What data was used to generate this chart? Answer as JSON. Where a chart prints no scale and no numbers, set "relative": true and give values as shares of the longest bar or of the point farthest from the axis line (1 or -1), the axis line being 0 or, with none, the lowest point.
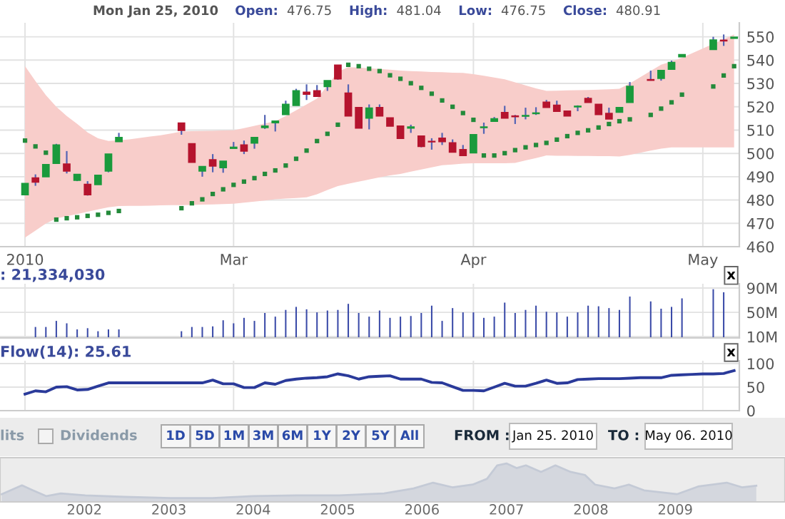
{
  "chart_data": [
    {
      "type": "candlestick",
      "annotations": [
        "Mon Jan 25, 2010",
        "Open:",
        "476.75",
        "High:",
        "481.04",
        "Low:",
        "476.75",
        "Close:",
        "480.91"
      ],
      "categories": [
        "2010",
        null,
        null,
        null,
        null,
        null,
        null,
        null,
        null,
        null,
        null,
        null,
        null,
        null,
        null,
        null,
        null,
        null,
        null,
        null,
        "Mar",
        null,
        null,
        null,
        null,
        null,
        null,
        null,
        null,
        null,
        null,
        null,
        null,
        null,
        null,
        null,
        null,
        null,
        null,
        null,
        null,
        null,
        null,
        "Apr",
        null,
        null,
        null,
        null,
        null,
        null,
        null,
        null,
        null,
        null,
        null,
        null,
        null,
        null,
        null,
        null,
        null,
        null,
        null,
        null,
        null,
        "May",
        null,
        null,
        null
      ],
      "ohlc": [
        [
          482.3,
          487.1,
          482.3,
          487.1
        ],
        [
          489.4,
          491.0,
          486.1,
          487.7
        ],
        [
          490.0,
          495.2,
          490.0,
          495.2
        ],
        [
          495.8,
          504.1,
          495.8,
          503.6
        ],
        [
          495.4,
          501.0,
          491.4,
          492.5
        ],
        [
          488.5,
          491.0,
          488.1,
          491.0
        ],
        [
          486.7,
          488.1,
          481.9,
          482.3
        ],
        [
          486.7,
          490.6,
          486.7,
          490.6
        ],
        [
          492.5,
          499.7,
          491.9,
          499.7
        ],
        [
          505.1,
          508.8,
          505.1,
          506.8
        ],
        null,
        null,
        null,
        null,
        null,
        [
          513.0,
          513.0,
          508.0,
          509.9
        ],
        [
          504.1,
          504.1,
          496.2,
          496.2
        ],
        [
          492.5,
          494.3,
          490.0,
          494.3
        ],
        [
          497.2,
          499.7,
          491.9,
          494.6
        ],
        [
          493.9,
          496.6,
          491.7,
          496.6
        ],
        [
          502.2,
          504.9,
          502.2,
          502.6
        ],
        [
          503.6,
          505.5,
          499.7,
          501.0
        ],
        [
          504.5,
          506.8,
          502.0,
          506.8
        ],
        [
          511.1,
          516.5,
          510.5,
          511.7
        ],
        [
          513.2,
          513.8,
          509.4,
          513.8
        ],
        [
          516.7,
          522.6,
          516.7,
          521.0
        ],
        [
          520.6,
          527.7,
          520.6,
          526.8
        ],
        [
          526.2,
          529.6,
          522.9,
          525.4
        ],
        [
          526.8,
          529.3,
          524.5,
          524.5
        ],
        [
          528.7,
          531.2,
          526.8,
          531.2
        ],
        [
          537.8,
          537.8,
          531.6,
          532.0
        ],
        [
          525.8,
          529.6,
          516.1,
          516.1
        ],
        [
          519.6,
          519.6,
          510.9,
          510.9
        ],
        [
          515.2,
          521.0,
          510.3,
          519.4
        ],
        [
          519.6,
          521.0,
          516.1,
          516.1
        ],
        [
          515.2,
          515.2,
          511.7,
          511.7
        ],
        [
          511.7,
          511.7,
          506.5,
          506.5
        ],
        [
          510.9,
          512.3,
          508.8,
          511.3
        ],
        [
          507.4,
          507.4,
          502.6,
          503.0
        ],
        [
          505.1,
          506.5,
          501.6,
          505.0
        ],
        [
          506.5,
          508.8,
          503.6,
          505.1
        ],
        [
          504.5,
          506.0,
          500.6,
          500.6
        ],
        [
          501.6,
          503.6,
          499.1,
          499.1
        ],
        [
          500.3,
          508.0,
          500.3,
          508.0
        ],
        [
          511.1,
          513.2,
          508.4,
          511.3
        ],
        [
          513.8,
          515.6,
          513.8,
          514.8
        ],
        [
          517.5,
          520.4,
          515.2,
          515.2
        ],
        [
          516.0,
          516.5,
          512.6,
          515.8
        ],
        [
          516.0,
          519.6,
          514.6,
          516.2
        ],
        [
          517.1,
          519.8,
          516.5,
          517.3
        ],
        [
          521.9,
          522.9,
          519.8,
          519.8
        ],
        [
          520.6,
          522.6,
          518.1,
          518.1
        ],
        [
          518.1,
          518.1,
          516.1,
          516.1
        ],
        [
          520.0,
          520.6,
          518.1,
          520.2
        ],
        [
          523.5,
          524.2,
          521.9,
          521.9
        ],
        [
          521.0,
          521.0,
          516.7,
          516.7
        ],
        [
          517.1,
          519.6,
          514.8,
          514.8
        ],
        [
          517.7,
          519.6,
          517.7,
          519.6
        ],
        [
          521.9,
          530.6,
          521.9,
          528.7
        ],
        null,
        [
          531.6,
          535.5,
          531.2,
          531.4
        ],
        [
          532.2,
          535.5,
          531.2,
          535.5
        ],
        [
          536.1,
          539.8,
          536.1,
          539.0
        ],
        [
          541.5,
          542.3,
          541.5,
          542.3
        ],
        null,
        null,
        [
          544.6,
          550.0,
          544.6,
          548.6
        ],
        [
          548.5,
          551.0,
          546.1,
          548.3
        ],
        [
          549.4,
          549.8,
          549.4,
          549.8
        ]
      ],
      "colors": [
        "#1a9a3c",
        "#b5142e",
        "#1a9a3c",
        "#1a9a3c",
        "#b5142e",
        "#1a9a3c",
        "#b5142e",
        "#1a9a3c",
        "#1a9a3c",
        "#1a9a3c",
        null,
        null,
        null,
        null,
        null,
        "#b5142e",
        "#b5142e",
        "#1a9a3c",
        "#b5142e",
        "#1a9a3c",
        "#1a9a3c",
        "#b5142e",
        "#1a9a3c",
        "#1a9a3c",
        "#1a9a3c",
        "#1a9a3c",
        "#1a9a3c",
        "#b5142e",
        "#b5142e",
        "#1a9a3c",
        "#b5142e",
        "#b5142e",
        "#b5142e",
        "#1a9a3c",
        "#b5142e",
        "#b5142e",
        "#b5142e",
        "#1a9a3c",
        "#b5142e",
        "#b5142e",
        "#b5142e",
        "#b5142e",
        "#b5142e",
        "#1a9a3c",
        "#1a9a3c",
        "#1a9a3c",
        "#b5142e",
        "#b5142e",
        "#1a9a3c",
        "#1a9a3c",
        "#b5142e",
        "#b5142e",
        "#b5142e",
        "#1a9a3c",
        "#b5142e",
        "#b5142e",
        "#b5142e",
        "#1a9a3c",
        "#1a9a3c",
        null,
        "#b5142e",
        "#1a9a3c",
        "#1a9a3c",
        "#1a9a3c",
        null,
        null,
        "#1a9a3c",
        "#b5142e",
        "#1a9a3c"
      ],
      "series": [
        {
          "type": "area",
          "color": "#f8cdca",
          "values": [
            null,
            null,
            null,
            null,
            null,
            null,
            null,
            null,
            null,
            null,
            null,
            null,
            null,
            null,
            null,
            null,
            null,
            null,
            null,
            null,
            null,
            null,
            null,
            null,
            null,
            null,
            null,
            null,
            null,
            null,
            null,
            null,
            null,
            null,
            null,
            null,
            null,
            null,
            null,
            null,
            null,
            null,
            null,
            null,
            null,
            null,
            null,
            null,
            null,
            null,
            null,
            null,
            null,
            null,
            null,
            null,
            null,
            null,
            null,
            null,
            null,
            null,
            null,
            null,
            null,
            null,
            null,
            null,
            null
          ],
          "lower": [
            463.9,
            466.9,
            469.9,
            472.1,
            473.1,
            474,
            475,
            476,
            476.9,
            477.4,
            477.5,
            477.5,
            477.6,
            477.7,
            477.8,
            477.8,
            477.9,
            478,
            478.1,
            478.3,
            478.4,
            478.9,
            479.3,
            479.8,
            480.3,
            480.6,
            480.9,
            481.2,
            482.5,
            484.3,
            486,
            487,
            487.9,
            488.8,
            489.7,
            490.6,
            491.2,
            492.2,
            493.1,
            494,
            494.9,
            495.2,
            495.6,
            495.8,
            495.8,
            495.8,
            495.8,
            495.9,
            497,
            498,
            499.1,
            499,
            499,
            498.9,
            498.9,
            498.8,
            498.8,
            498.7,
            499.4,
            500.3,
            501.2,
            502,
            502.6,
            502.6,
            502.6,
            502.6,
            502.6,
            502.6,
            502.6
          ],
          "upper": [
            537.4,
            531,
            525,
            520,
            516,
            512.7,
            509,
            506.5,
            505.3,
            505.6,
            506,
            506.6,
            507.2,
            507.8,
            508.5,
            509.4,
            509.5,
            509.6,
            509.7,
            509.8,
            509.9,
            510.8,
            511.8,
            512.8,
            513.8,
            516,
            518.5,
            521,
            523.5,
            529,
            535,
            537,
            536.8,
            536.5,
            536.2,
            535.9,
            535.5,
            535.3,
            535.1,
            534.9,
            534.8,
            534.6,
            534.5,
            534,
            533.3,
            532.5,
            531.8,
            530.5,
            529.2,
            527.9,
            526.8,
            526.9,
            527,
            527.1,
            527.2,
            527.3,
            527.5,
            527.7,
            530,
            532.7,
            535.4,
            538,
            539.4,
            541,
            543,
            545,
            547,
            549,
            551
          ]
        },
        {
          "type": "scatter",
          "color": "#238a3a",
          "marker": "square",
          "values": [
            505.5,
            503.0,
            500.3,
            471.6,
            472.2,
            472.6,
            473.2,
            473.7,
            474.5,
            475.3,
            null,
            null,
            null,
            null,
            null,
            476.5,
            478.6,
            480.3,
            482.6,
            484.6,
            486.5,
            487.9,
            489.4,
            491.2,
            492.7,
            494.8,
            497.7,
            501.2,
            505.3,
            508.4,
            512.3,
            538.0,
            537.4,
            536.3,
            535.3,
            533.5,
            532.0,
            530.1,
            528.1,
            525.6,
            522.7,
            520.0,
            517.3,
            514.4,
            499.1,
            499.1,
            500.1,
            501.4,
            502.6,
            503.6,
            504.5,
            505.9,
            507.4,
            508.8,
            509.9,
            511.1,
            512.6,
            513.8,
            514.6,
            null,
            516.5,
            519.2,
            521.9,
            525.2,
            null,
            null,
            528.7,
            533.4,
            537.4
          ]
        }
      ],
      "ylim": [
        460,
        556
      ],
      "yticks": [
        460,
        470,
        480,
        490,
        500,
        510,
        520,
        530,
        540,
        550
      ],
      "grid": true
    },
    {
      "type": "bar",
      "title": ": 21,334,030",
      "annotations": [
        "x"
      ],
      "color": "#3a4aa8",
      "categories": [
        null,
        null,
        null,
        null,
        null,
        null,
        null,
        null,
        null,
        null,
        null,
        null,
        null,
        null,
        null,
        null,
        null,
        null,
        null,
        null,
        null,
        null,
        null,
        null,
        null,
        null,
        null,
        null,
        null,
        null,
        null,
        null,
        null,
        null,
        null,
        null,
        null,
        null,
        null,
        null,
        null,
        null,
        null,
        null,
        null,
        null,
        null,
        null,
        null,
        null,
        null,
        null,
        null,
        null,
        null,
        null,
        null,
        null,
        null,
        null,
        null,
        null,
        null,
        null,
        null,
        null,
        null,
        null,
        null
      ],
      "values": [
        null,
        26,
        26,
        36,
        32,
        22,
        24,
        19,
        22,
        22,
        null,
        null,
        null,
        null,
        null,
        19,
        26,
        26,
        27,
        37,
        32,
        41,
        36,
        49,
        43,
        54,
        59,
        55,
        50,
        53,
        54,
        64,
        49,
        43,
        53,
        41,
        43,
        44,
        49,
        61,
        36,
        57,
        50,
        50,
        41,
        43,
        66,
        49,
        54,
        61,
        51,
        50,
        43,
        50,
        61,
        60,
        57,
        54,
        76,
        null,
        68,
        56,
        59,
        73,
        null,
        null,
        88,
        83,
        null
      ],
      "ylim": [
        8,
        97
      ],
      "yticks": [
        {
          "value": 10,
          "label": "10M"
        },
        {
          "value": 50,
          "label": "50M"
        },
        {
          "value": 90,
          "label": "90M"
        }
      ],
      "tick_labels": "y",
      "grid": true
    },
    {
      "type": "line",
      "title": "Flow(14): 25.61",
      "annotations": [
        "x"
      ],
      "color": "#2a3a9a",
      "categories": [
        null,
        null,
        null,
        null,
        null,
        null,
        null,
        null,
        null,
        null,
        null,
        null,
        null,
        null,
        null,
        null,
        null,
        null,
        null,
        null,
        null,
        null,
        null,
        null,
        null,
        null,
        null,
        null,
        null,
        null,
        null,
        null,
        null,
        null,
        null,
        null,
        null,
        null,
        null,
        null,
        null,
        null,
        null,
        null,
        null,
        null,
        null,
        null,
        null,
        null,
        null,
        null,
        null,
        null,
        null,
        null,
        null,
        null,
        null,
        null,
        null,
        null,
        null,
        null,
        null,
        null,
        null,
        null,
        null
      ],
      "values": [
        35,
        42,
        40,
        50,
        51,
        44,
        45,
        52,
        59,
        59,
        59,
        59,
        59,
        59,
        59,
        59,
        59,
        59,
        65,
        57,
        57,
        49,
        49,
        59,
        56,
        64,
        67,
        69,
        70,
        72,
        78,
        74,
        67,
        72,
        73,
        74,
        67,
        67,
        67,
        60,
        59,
        51,
        43,
        43,
        42,
        50,
        58,
        52,
        52,
        58,
        65,
        58,
        59,
        66,
        67,
        68,
        68,
        68,
        69,
        70,
        70,
        70,
        75,
        76,
        77,
        78,
        78,
        79,
        85
      ],
      "ylim": [
        0,
        106
      ],
      "yticks": [
        0,
        50,
        100
      ],
      "tick_labels": "y",
      "grid": true
    },
    {
      "type": "other",
      "annotations": [
        "lits",
        "Dividends",
        "1D",
        "5D",
        "1M",
        "3M",
        "6M",
        "1Y",
        "2Y",
        "5Y",
        "All",
        "FROM :",
        "Jan 25. 2010",
        "TO :",
        "May 06. 2010"
      ]
    },
    {
      "type": "area",
      "relative": true,
      "color": "#c4cad6",
      "x": [
        2001.02,
        2001.26,
        2001.37,
        2001.55,
        2001.72,
        2002.01,
        2002.48,
        2003.02,
        2003.52,
        2004.0,
        2004.51,
        2005.02,
        2005.55,
        2005.9,
        2006.13,
        2006.36,
        2006.6,
        2006.77,
        2006.89,
        2007.0,
        2007.12,
        2007.23,
        2007.41,
        2007.58,
        2007.76,
        2007.93,
        2008.05,
        2008.28,
        2008.45,
        2008.63,
        2009.02,
        2009.27,
        2009.61,
        2009.79,
        2009.96
      ],
      "values": [
        0.2,
        0.43,
        0.32,
        0.15,
        0.22,
        0.17,
        0.13,
        0.1,
        0.1,
        0.15,
        0.17,
        0.17,
        0.22,
        0.35,
        0.5,
        0.38,
        0.45,
        0.6,
        0.95,
        1.0,
        0.88,
        0.95,
        0.78,
        0.95,
        0.78,
        0.7,
        0.45,
        0.35,
        0.45,
        0.3,
        0.2,
        0.4,
        0.5,
        0.38,
        0.42
      ],
      "xlim": [
        2001.0,
        2010.3
      ],
      "xticks": [
        2002,
        2003,
        2004,
        2005,
        2006,
        2007,
        2008,
        2009
      ],
      "tick_labels": "x"
    }
  ]
}
